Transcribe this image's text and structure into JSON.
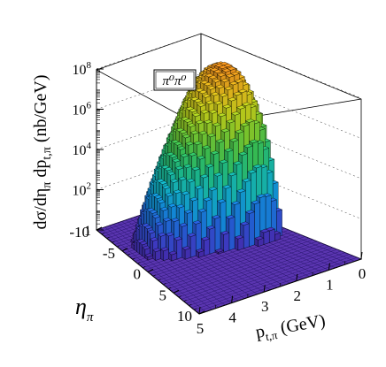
{
  "chart_data": {
    "type": "lego3d",
    "legend": "π⁰π⁰",
    "zlabel": "dσ/dη",
    "zlabel_tail": "π",
    "zlabel_dp": " dp",
    "zlabel_sub": "t,π",
    "zlabel_unit": "(nb/GeV)",
    "xlabel_main": "p",
    "xlabel_sub": "t,π",
    "xlabel_unit": "(GeV)",
    "ylabel": "η",
    "ylabel_sub": "π",
    "z_scale": "log",
    "zlim": [
      1,
      100000000
    ],
    "z_ticks": [
      {
        "base": "10",
        "exp": "8",
        "value": 100000000
      },
      {
        "base": "10",
        "exp": "6",
        "value": 1000000
      },
      {
        "base": "10",
        "exp": "4",
        "value": 10000
      },
      {
        "base": "10",
        "exp": "2",
        "value": 100
      },
      {
        "base": "1",
        "exp": "",
        "value": 1
      }
    ],
    "x_ticks": [
      "0",
      "1",
      "2",
      "3",
      "4",
      "5"
    ],
    "x_tick_values": [
      0,
      1,
      2,
      3,
      4,
      5
    ],
    "y_ticks": [
      "-10",
      "-5",
      "0",
      "5",
      "10"
    ],
    "y_tick_values": [
      -10,
      -5,
      0,
      5,
      10
    ],
    "xlim": [
      0,
      5
    ],
    "ylim": [
      -10,
      10
    ],
    "peak": {
      "pt": 1.2,
      "eta": -3.5,
      "value": 100000000
    },
    "grid": true,
    "legend_position": "top-left"
  }
}
